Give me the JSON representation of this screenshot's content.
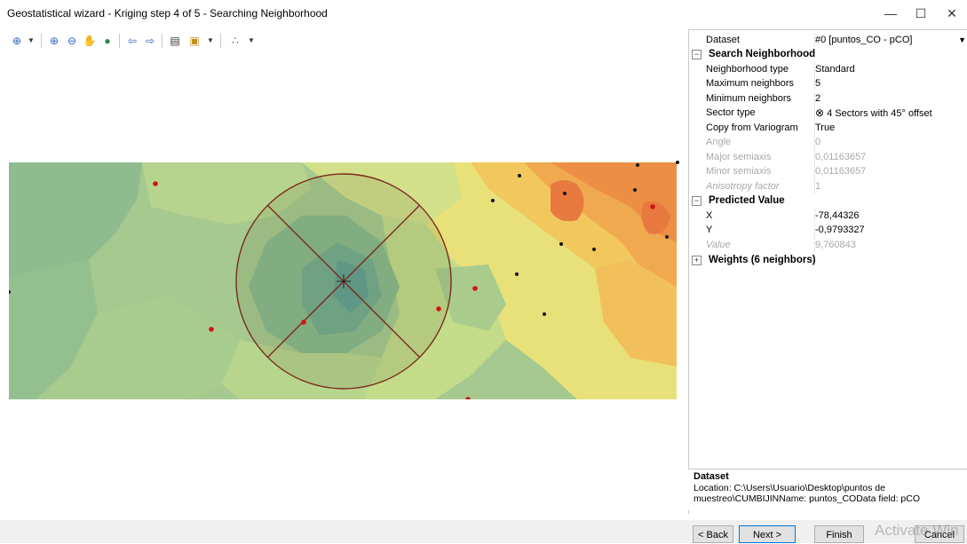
{
  "window": {
    "title": "Geostatistical wizard - Kriging step 4 of 5 - Searching Neighborhood",
    "minimize_label": "—",
    "maximize_label": "☐",
    "close_label": "✕"
  },
  "toolbar": {
    "icons": [
      "select-pointer-icon",
      "dropdown-arrow-icon",
      "zoom-in-icon",
      "zoom-out-icon",
      "pan-hand-icon",
      "full-extent-globe-icon",
      "back-arrow-icon",
      "forward-arrow-icon",
      "table-icon",
      "layers-icon",
      "dropdown-arrow-icon",
      "points-symbol-icon",
      "dropdown-arrow-icon"
    ]
  },
  "properties": {
    "dataset": {
      "key": "Dataset",
      "value": "#0 [puntos_CO - pCO]"
    },
    "search_neighborhood": {
      "header": "Search Neighborhood",
      "rows": [
        {
          "key": "Neighborhood type",
          "value": "Standard"
        },
        {
          "key": "Maximum neighbors",
          "value": "5"
        },
        {
          "key": "Minimum neighbors",
          "value": "2"
        },
        {
          "key": "Sector type",
          "value": "4 Sectors with 45° offset"
        },
        {
          "key": "Copy from Variogram",
          "value": "True"
        },
        {
          "key": "Angle",
          "value": "0"
        },
        {
          "key": "Major semiaxis",
          "value": "0,01163657"
        },
        {
          "key": "Minor semiaxis",
          "value": "0,01163657"
        },
        {
          "key": "Anisotropy factor",
          "value": "1"
        }
      ]
    },
    "predicted_value": {
      "header": "Predicted Value",
      "rows": [
        {
          "key": "X",
          "value": "-78,44326"
        },
        {
          "key": "Y",
          "value": "-0,9793327"
        },
        {
          "key": "Value",
          "value": "9,760843"
        }
      ]
    },
    "weights": {
      "header": "Weights (6 neighbors)"
    }
  },
  "description": {
    "header": "Dataset",
    "text": "Location: C:\\Users\\Usuario\\Desktop\\puntos de muestreo\\CUMBIJINName: puntos_COData field: pCO"
  },
  "buttons": {
    "back": "< Back",
    "next": "Next >",
    "finish": "Finish",
    "cancel": "Cancel"
  },
  "watermark": "Activate Win"
}
